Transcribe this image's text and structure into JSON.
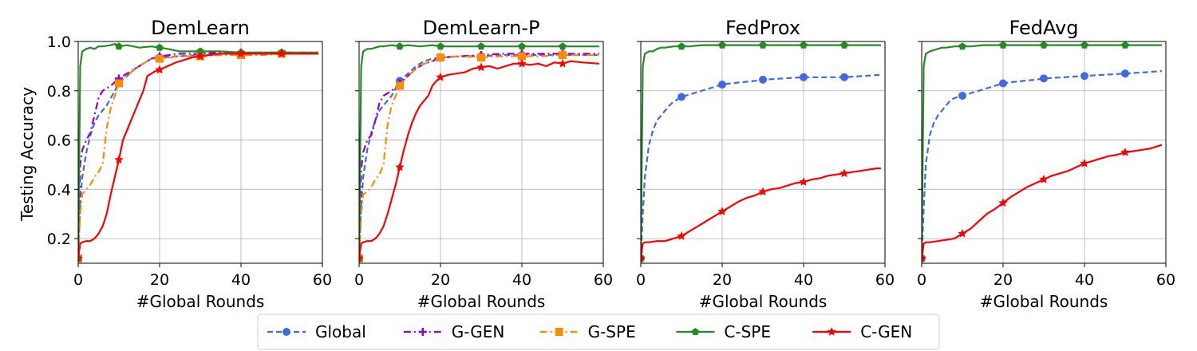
{
  "figure": {
    "ylabel": "Testing Accuracy",
    "xlabel": "#Global Rounds"
  },
  "legend": [
    {
      "label": "Global",
      "color": "#4169E1",
      "dash": "dashed",
      "marker": "circle"
    },
    {
      "label": "G-GEN",
      "color": "#9400D3",
      "dash": "dashdot",
      "marker": "plus"
    },
    {
      "label": "G-SPE",
      "color": "#FF8C00",
      "dash": "dashdot",
      "marker": "square"
    },
    {
      "label": "C-SPE",
      "color": "#228B22",
      "dash": "solid",
      "marker": "pentagon"
    },
    {
      "label": "C-GEN",
      "color": "#FF0000",
      "dash": "solid",
      "marker": "star"
    }
  ],
  "chart_data": [
    {
      "type": "line",
      "title": "DemLearn",
      "xlabel": "#Global Rounds",
      "ylabel": "Testing Accuracy",
      "xlim": [
        0,
        60
      ],
      "ylim": [
        0.1,
        1.0
      ],
      "xticks": [
        0,
        20,
        40,
        60
      ],
      "yticks": [
        0.2,
        0.4,
        0.6,
        0.8,
        1.0
      ],
      "grid": true,
      "series": [
        {
          "name": "Global",
          "x": [
            0,
            0.5,
            1,
            2,
            3,
            4,
            5,
            6,
            7,
            8,
            9,
            10,
            12,
            14,
            16,
            18,
            20,
            25,
            30,
            35,
            40,
            45,
            50,
            55,
            59
          ],
          "y": [
            0.12,
            0.35,
            0.45,
            0.55,
            0.62,
            0.67,
            0.7,
            0.72,
            0.74,
            0.77,
            0.8,
            0.83,
            0.86,
            0.89,
            0.91,
            0.93,
            0.935,
            0.94,
            0.945,
            0.95,
            0.95,
            0.95,
            0.95,
            0.95,
            0.95
          ]
        },
        {
          "name": "G-GEN",
          "x": [
            0,
            0.5,
            1,
            2,
            3,
            4,
            5,
            6,
            7,
            8,
            10,
            12,
            14,
            16,
            18,
            20,
            25,
            30,
            35,
            40,
            45,
            50,
            55,
            59
          ],
          "y": [
            0.12,
            0.5,
            0.56,
            0.6,
            0.63,
            0.7,
            0.77,
            0.8,
            0.81,
            0.82,
            0.85,
            0.87,
            0.89,
            0.91,
            0.93,
            0.94,
            0.95,
            0.95,
            0.955,
            0.955,
            0.955,
            0.955,
            0.955,
            0.955
          ]
        },
        {
          "name": "G-SPE",
          "x": [
            0,
            0.5,
            1,
            2,
            3,
            4,
            5,
            6,
            7,
            8,
            10,
            12,
            14,
            16,
            18,
            20,
            25,
            30,
            35,
            40,
            45,
            50,
            55,
            59
          ],
          "y": [
            0.12,
            0.3,
            0.38,
            0.4,
            0.42,
            0.45,
            0.47,
            0.5,
            0.65,
            0.73,
            0.83,
            0.86,
            0.89,
            0.91,
            0.93,
            0.93,
            0.94,
            0.94,
            0.945,
            0.945,
            0.945,
            0.95,
            0.95,
            0.95
          ]
        },
        {
          "name": "C-SPE",
          "x": [
            0,
            0.5,
            1,
            2,
            3,
            4,
            5,
            6,
            8,
            9,
            10,
            12,
            15,
            18,
            20,
            22,
            25,
            30,
            35,
            40,
            45,
            50,
            55,
            59
          ],
          "y": [
            0.12,
            0.9,
            0.96,
            0.97,
            0.975,
            0.97,
            0.98,
            0.98,
            0.985,
            0.99,
            0.98,
            0.985,
            0.975,
            0.98,
            0.975,
            0.97,
            0.96,
            0.96,
            0.96,
            0.955,
            0.955,
            0.955,
            0.955,
            0.955
          ]
        },
        {
          "name": "C-GEN",
          "x": [
            0,
            0.5,
            1,
            2,
            3,
            4,
            5,
            6,
            7,
            8,
            9,
            10,
            11,
            12,
            13,
            14,
            15,
            16,
            17,
            18,
            19,
            20,
            22,
            24,
            26,
            28,
            30,
            35,
            40,
            45,
            50,
            55,
            59
          ],
          "y": [
            0.12,
            0.18,
            0.185,
            0.19,
            0.19,
            0.2,
            0.22,
            0.25,
            0.3,
            0.38,
            0.45,
            0.52,
            0.6,
            0.64,
            0.68,
            0.72,
            0.76,
            0.8,
            0.86,
            0.87,
            0.88,
            0.885,
            0.9,
            0.915,
            0.925,
            0.935,
            0.94,
            0.95,
            0.95,
            0.95,
            0.95,
            0.95,
            0.95
          ]
        }
      ]
    },
    {
      "type": "line",
      "title": "DemLearn-P",
      "xlabel": "#Global Rounds",
      "ylabel": "",
      "xlim": [
        0,
        60
      ],
      "ylim": [
        0.1,
        1.0
      ],
      "xticks": [
        0,
        20,
        40,
        60
      ],
      "yticks": [
        0.2,
        0.4,
        0.6,
        0.8,
        1.0
      ],
      "grid": true,
      "series": [
        {
          "name": "Global",
          "x": [
            0,
            0.5,
            1,
            2,
            3,
            4,
            5,
            6,
            7,
            8,
            9,
            10,
            12,
            14,
            16,
            18,
            20,
            25,
            30,
            35,
            40,
            45,
            50,
            55,
            59
          ],
          "y": [
            0.12,
            0.33,
            0.45,
            0.56,
            0.63,
            0.68,
            0.72,
            0.74,
            0.76,
            0.78,
            0.81,
            0.84,
            0.87,
            0.9,
            0.92,
            0.93,
            0.935,
            0.94,
            0.94,
            0.945,
            0.945,
            0.945,
            0.945,
            0.945,
            0.945
          ]
        },
        {
          "name": "G-GEN",
          "x": [
            0,
            0.5,
            1,
            2,
            3,
            4,
            5,
            6,
            7,
            8,
            10,
            12,
            14,
            16,
            18,
            20,
            25,
            30,
            35,
            40,
            45,
            50,
            55,
            59
          ],
          "y": [
            0.12,
            0.48,
            0.55,
            0.6,
            0.62,
            0.68,
            0.75,
            0.78,
            0.79,
            0.8,
            0.83,
            0.86,
            0.89,
            0.91,
            0.92,
            0.935,
            0.94,
            0.945,
            0.95,
            0.95,
            0.95,
            0.95,
            0.95,
            0.95
          ]
        },
        {
          "name": "G-SPE",
          "x": [
            0,
            0.5,
            1,
            2,
            3,
            4,
            5,
            6,
            7,
            8,
            10,
            12,
            14,
            16,
            18,
            20,
            25,
            30,
            35,
            40,
            45,
            50,
            55,
            59
          ],
          "y": [
            0.12,
            0.3,
            0.38,
            0.39,
            0.41,
            0.44,
            0.46,
            0.5,
            0.66,
            0.74,
            0.82,
            0.86,
            0.89,
            0.91,
            0.92,
            0.935,
            0.94,
            0.935,
            0.94,
            0.94,
            0.94,
            0.945,
            0.945,
            0.945
          ]
        },
        {
          "name": "C-SPE",
          "x": [
            0,
            0.5,
            1,
            2,
            3,
            4,
            5,
            6,
            8,
            10,
            12,
            15,
            18,
            20,
            25,
            30,
            35,
            40,
            45,
            50,
            55,
            59
          ],
          "y": [
            0.12,
            0.9,
            0.96,
            0.97,
            0.97,
            0.975,
            0.98,
            0.98,
            0.985,
            0.98,
            0.985,
            0.98,
            0.985,
            0.98,
            0.98,
            0.98,
            0.98,
            0.98,
            0.98,
            0.98,
            0.98,
            0.98
          ]
        },
        {
          "name": "C-GEN",
          "x": [
            0,
            0.5,
            1,
            2,
            3,
            4,
            5,
            6,
            7,
            8,
            9,
            10,
            11,
            12,
            13,
            14,
            15,
            16,
            17,
            18,
            19,
            20,
            22,
            24,
            26,
            28,
            30,
            32,
            34,
            36,
            38,
            40,
            42,
            44,
            46,
            48,
            50,
            52,
            55,
            59
          ],
          "y": [
            0.12,
            0.18,
            0.185,
            0.19,
            0.19,
            0.2,
            0.22,
            0.25,
            0.3,
            0.36,
            0.42,
            0.49,
            0.56,
            0.62,
            0.67,
            0.71,
            0.74,
            0.76,
            0.78,
            0.82,
            0.84,
            0.855,
            0.865,
            0.87,
            0.875,
            0.89,
            0.895,
            0.9,
            0.89,
            0.9,
            0.91,
            0.91,
            0.905,
            0.91,
            0.9,
            0.915,
            0.91,
            0.92,
            0.915,
            0.91
          ]
        }
      ]
    },
    {
      "type": "line",
      "title": "FedProx",
      "xlabel": "#Global Rounds",
      "ylabel": "",
      "xlim": [
        0,
        60
      ],
      "ylim": [
        0.1,
        1.0
      ],
      "xticks": [
        0,
        20,
        40,
        60
      ],
      "yticks": [
        0.2,
        0.4,
        0.6,
        0.8,
        1.0
      ],
      "grid": true,
      "series": [
        {
          "name": "Global",
          "x": [
            0,
            0.5,
            1,
            2,
            3,
            4,
            5,
            6,
            7,
            8,
            9,
            10,
            12,
            14,
            16,
            18,
            20,
            22,
            25,
            28,
            30,
            35,
            40,
            45,
            50,
            55,
            59
          ],
          "y": [
            0.12,
            0.3,
            0.45,
            0.58,
            0.64,
            0.68,
            0.7,
            0.72,
            0.74,
            0.755,
            0.765,
            0.775,
            0.785,
            0.795,
            0.805,
            0.815,
            0.825,
            0.83,
            0.835,
            0.84,
            0.845,
            0.85,
            0.855,
            0.855,
            0.855,
            0.86,
            0.865
          ]
        },
        {
          "name": "C-SPE",
          "x": [
            0,
            0.5,
            1,
            2,
            3,
            4,
            5,
            6,
            8,
            10,
            12,
            15,
            18,
            20,
            25,
            30,
            35,
            40,
            45,
            50,
            55,
            59
          ],
          "y": [
            0.12,
            0.9,
            0.95,
            0.96,
            0.96,
            0.97,
            0.975,
            0.975,
            0.98,
            0.98,
            0.98,
            0.985,
            0.985,
            0.985,
            0.985,
            0.985,
            0.985,
            0.985,
            0.985,
            0.985,
            0.985,
            0.985
          ]
        },
        {
          "name": "C-GEN",
          "x": [
            0,
            0.5,
            1,
            2,
            4,
            6,
            8,
            10,
            12,
            14,
            16,
            18,
            20,
            22,
            24,
            26,
            28,
            30,
            32,
            34,
            36,
            38,
            40,
            42,
            44,
            46,
            48,
            50,
            52,
            54,
            56,
            58,
            59
          ],
          "y": [
            0.12,
            0.18,
            0.185,
            0.185,
            0.19,
            0.19,
            0.2,
            0.21,
            0.23,
            0.25,
            0.27,
            0.29,
            0.31,
            0.33,
            0.35,
            0.365,
            0.375,
            0.39,
            0.4,
            0.405,
            0.415,
            0.425,
            0.43,
            0.44,
            0.445,
            0.455,
            0.46,
            0.465,
            0.47,
            0.475,
            0.48,
            0.485,
            0.485
          ]
        }
      ]
    },
    {
      "type": "line",
      "title": "FedAvg",
      "xlabel": "#Global Rounds",
      "ylabel": "",
      "xlim": [
        0,
        60
      ],
      "ylim": [
        0.1,
        1.0
      ],
      "xticks": [
        0,
        20,
        40,
        60
      ],
      "yticks": [
        0.2,
        0.4,
        0.6,
        0.8,
        1.0
      ],
      "grid": true,
      "series": [
        {
          "name": "Global",
          "x": [
            0,
            0.5,
            1,
            2,
            3,
            4,
            5,
            6,
            7,
            8,
            9,
            10,
            12,
            14,
            16,
            18,
            20,
            22,
            25,
            28,
            30,
            35,
            40,
            45,
            50,
            55,
            59
          ],
          "y": [
            0.12,
            0.32,
            0.5,
            0.62,
            0.67,
            0.7,
            0.72,
            0.74,
            0.76,
            0.77,
            0.775,
            0.78,
            0.79,
            0.8,
            0.81,
            0.82,
            0.83,
            0.835,
            0.84,
            0.845,
            0.85,
            0.855,
            0.86,
            0.865,
            0.87,
            0.875,
            0.88
          ]
        },
        {
          "name": "C-SPE",
          "x": [
            0,
            0.5,
            1,
            2,
            3,
            4,
            5,
            6,
            8,
            10,
            12,
            15,
            18,
            20,
            25,
            30,
            35,
            40,
            45,
            50,
            55,
            59
          ],
          "y": [
            0.12,
            0.9,
            0.95,
            0.96,
            0.965,
            0.97,
            0.975,
            0.975,
            0.98,
            0.98,
            0.98,
            0.985,
            0.985,
            0.985,
            0.985,
            0.985,
            0.985,
            0.985,
            0.985,
            0.985,
            0.985,
            0.985
          ]
        },
        {
          "name": "C-GEN",
          "x": [
            0,
            0.5,
            1,
            2,
            4,
            6,
            8,
            10,
            12,
            14,
            16,
            18,
            20,
            22,
            24,
            26,
            28,
            30,
            32,
            34,
            36,
            38,
            40,
            42,
            44,
            46,
            48,
            50,
            52,
            54,
            56,
            58,
            59
          ],
          "y": [
            0.12,
            0.18,
            0.185,
            0.185,
            0.19,
            0.195,
            0.2,
            0.22,
            0.24,
            0.27,
            0.3,
            0.32,
            0.345,
            0.37,
            0.39,
            0.41,
            0.425,
            0.44,
            0.455,
            0.465,
            0.475,
            0.49,
            0.505,
            0.515,
            0.525,
            0.535,
            0.54,
            0.55,
            0.555,
            0.56,
            0.565,
            0.575,
            0.58
          ]
        }
      ]
    }
  ]
}
